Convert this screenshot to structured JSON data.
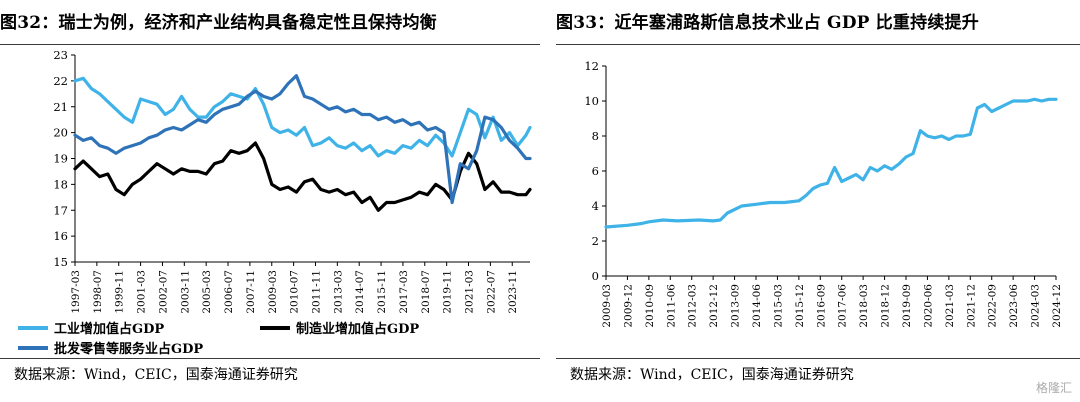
{
  "left": {
    "title": "图32：瑞士为例，经济和产业结构具备稳定性且保持均衡",
    "source": "数据来源：Wind，CEIC，国泰海通证券研究"
  },
  "right": {
    "title": "图33：近年塞浦路斯信息技术业占 GDP 比重持续提升",
    "source": "数据来源：Wind，CEIC，国泰海通证券研究"
  },
  "watermark": "格隆汇",
  "chart_data": [
    {
      "type": "line",
      "title": "",
      "ylim": [
        15,
        23
      ],
      "yticks": [
        15,
        16,
        17,
        18,
        19,
        20,
        21,
        22,
        23
      ],
      "x_tick_labels": [
        "1997-03",
        "1998-07",
        "1999-11",
        "2001-03",
        "2002-07",
        "2003-11",
        "2005-03",
        "2006-07",
        "2007-11",
        "2009-03",
        "2010-07",
        "2011-11",
        "2013-03",
        "2014-07",
        "2015-11",
        "2017-03",
        "2018-07",
        "2019-11",
        "2021-03",
        "2022-07",
        "2023-11"
      ],
      "x_start": "1997-03",
      "x_end": "2024-12",
      "legend": {
        "placement": "bottom"
      },
      "series": [
        {
          "name": "工业增加值占GDP",
          "color": "#3fb3e8",
          "points": [
            [
              "1997-03",
              22.0
            ],
            [
              "1997-09",
              22.1
            ],
            [
              "1998-03",
              21.7
            ],
            [
              "1998-09",
              21.5
            ],
            [
              "1999-03",
              21.2
            ],
            [
              "1999-09",
              20.9
            ],
            [
              "2000-03",
              20.6
            ],
            [
              "2000-09",
              20.4
            ],
            [
              "2001-03",
              21.3
            ],
            [
              "2001-09",
              21.2
            ],
            [
              "2002-03",
              21.1
            ],
            [
              "2002-09",
              20.7
            ],
            [
              "2003-03",
              20.9
            ],
            [
              "2003-09",
              21.4
            ],
            [
              "2004-03",
              20.9
            ],
            [
              "2004-09",
              20.6
            ],
            [
              "2005-03",
              20.6
            ],
            [
              "2005-09",
              21.0
            ],
            [
              "2006-03",
              21.2
            ],
            [
              "2006-09",
              21.5
            ],
            [
              "2007-03",
              21.4
            ],
            [
              "2007-09",
              21.3
            ],
            [
              "2008-03",
              21.7
            ],
            [
              "2008-09",
              21.1
            ],
            [
              "2009-03",
              20.2
            ],
            [
              "2009-09",
              20.0
            ],
            [
              "2010-03",
              20.1
            ],
            [
              "2010-09",
              19.9
            ],
            [
              "2011-03",
              20.2
            ],
            [
              "2011-09",
              19.5
            ],
            [
              "2012-03",
              19.6
            ],
            [
              "2012-09",
              19.8
            ],
            [
              "2013-03",
              19.5
            ],
            [
              "2013-09",
              19.4
            ],
            [
              "2014-03",
              19.6
            ],
            [
              "2014-09",
              19.3
            ],
            [
              "2015-03",
              19.5
            ],
            [
              "2015-09",
              19.1
            ],
            [
              "2016-03",
              19.3
            ],
            [
              "2016-09",
              19.2
            ],
            [
              "2017-03",
              19.5
            ],
            [
              "2017-09",
              19.4
            ],
            [
              "2018-03",
              19.7
            ],
            [
              "2018-09",
              19.5
            ],
            [
              "2019-03",
              19.9
            ],
            [
              "2019-09",
              19.6
            ],
            [
              "2020-03",
              19.1
            ],
            [
              "2020-09",
              20.0
            ],
            [
              "2021-03",
              20.9
            ],
            [
              "2021-09",
              20.7
            ],
            [
              "2022-03",
              19.8
            ],
            [
              "2022-09",
              20.6
            ],
            [
              "2023-03",
              19.7
            ],
            [
              "2023-09",
              20.0
            ],
            [
              "2024-03",
              19.5
            ],
            [
              "2024-09",
              19.9
            ],
            [
              "2024-12",
              20.2
            ]
          ]
        },
        {
          "name": "制造业增加值占GDP",
          "color": "#000000",
          "points": [
            [
              "1997-03",
              18.6
            ],
            [
              "1997-09",
              18.9
            ],
            [
              "1998-03",
              18.6
            ],
            [
              "1998-09",
              18.3
            ],
            [
              "1999-03",
              18.4
            ],
            [
              "1999-09",
              17.8
            ],
            [
              "2000-03",
              17.6
            ],
            [
              "2000-09",
              18.0
            ],
            [
              "2001-03",
              18.2
            ],
            [
              "2001-09",
              18.5
            ],
            [
              "2002-03",
              18.8
            ],
            [
              "2002-09",
              18.6
            ],
            [
              "2003-03",
              18.4
            ],
            [
              "2003-09",
              18.6
            ],
            [
              "2004-03",
              18.5
            ],
            [
              "2004-09",
              18.5
            ],
            [
              "2005-03",
              18.4
            ],
            [
              "2005-09",
              18.8
            ],
            [
              "2006-03",
              18.9
            ],
            [
              "2006-09",
              19.3
            ],
            [
              "2007-03",
              19.2
            ],
            [
              "2007-09",
              19.3
            ],
            [
              "2008-03",
              19.6
            ],
            [
              "2008-09",
              19.0
            ],
            [
              "2009-03",
              18.0
            ],
            [
              "2009-09",
              17.8
            ],
            [
              "2010-03",
              17.9
            ],
            [
              "2010-09",
              17.7
            ],
            [
              "2011-03",
              18.1
            ],
            [
              "2011-09",
              18.2
            ],
            [
              "2012-03",
              17.8
            ],
            [
              "2012-09",
              17.7
            ],
            [
              "2013-03",
              17.8
            ],
            [
              "2013-09",
              17.6
            ],
            [
              "2014-03",
              17.7
            ],
            [
              "2014-09",
              17.3
            ],
            [
              "2015-03",
              17.5
            ],
            [
              "2015-09",
              17.0
            ],
            [
              "2016-03",
              17.3
            ],
            [
              "2016-09",
              17.3
            ],
            [
              "2017-03",
              17.4
            ],
            [
              "2017-09",
              17.5
            ],
            [
              "2018-03",
              17.7
            ],
            [
              "2018-09",
              17.6
            ],
            [
              "2019-03",
              18.0
            ],
            [
              "2019-09",
              17.8
            ],
            [
              "2020-03",
              17.4
            ],
            [
              "2020-09",
              18.5
            ],
            [
              "2021-03",
              19.2
            ],
            [
              "2021-09",
              18.8
            ],
            [
              "2022-03",
              17.8
            ],
            [
              "2022-09",
              18.1
            ],
            [
              "2023-03",
              17.7
            ],
            [
              "2023-09",
              17.7
            ],
            [
              "2024-03",
              17.6
            ],
            [
              "2024-09",
              17.6
            ],
            [
              "2024-12",
              17.8
            ]
          ]
        },
        {
          "name": "批发零售等服务业占GDP",
          "color": "#2e73b8",
          "points": [
            [
              "1997-03",
              19.9
            ],
            [
              "1997-09",
              19.7
            ],
            [
              "1998-03",
              19.8
            ],
            [
              "1998-09",
              19.5
            ],
            [
              "1999-03",
              19.4
            ],
            [
              "1999-09",
              19.2
            ],
            [
              "2000-03",
              19.4
            ],
            [
              "2000-09",
              19.5
            ],
            [
              "2001-03",
              19.6
            ],
            [
              "2001-09",
              19.8
            ],
            [
              "2002-03",
              19.9
            ],
            [
              "2002-09",
              20.1
            ],
            [
              "2003-03",
              20.2
            ],
            [
              "2003-09",
              20.1
            ],
            [
              "2004-03",
              20.3
            ],
            [
              "2004-09",
              20.5
            ],
            [
              "2005-03",
              20.4
            ],
            [
              "2005-09",
              20.7
            ],
            [
              "2006-03",
              20.9
            ],
            [
              "2006-09",
              21.0
            ],
            [
              "2007-03",
              21.1
            ],
            [
              "2007-09",
              21.4
            ],
            [
              "2008-03",
              21.6
            ],
            [
              "2008-09",
              21.4
            ],
            [
              "2009-03",
              21.3
            ],
            [
              "2009-09",
              21.5
            ],
            [
              "2010-03",
              21.9
            ],
            [
              "2010-09",
              22.2
            ],
            [
              "2011-03",
              21.4
            ],
            [
              "2011-09",
              21.3
            ],
            [
              "2012-03",
              21.1
            ],
            [
              "2012-09",
              20.9
            ],
            [
              "2013-03",
              21.0
            ],
            [
              "2013-09",
              20.8
            ],
            [
              "2014-03",
              20.9
            ],
            [
              "2014-09",
              20.7
            ],
            [
              "2015-03",
              20.7
            ],
            [
              "2015-09",
              20.5
            ],
            [
              "2016-03",
              20.6
            ],
            [
              "2016-09",
              20.4
            ],
            [
              "2017-03",
              20.5
            ],
            [
              "2017-09",
              20.3
            ],
            [
              "2018-03",
              20.4
            ],
            [
              "2018-09",
              20.1
            ],
            [
              "2019-03",
              20.2
            ],
            [
              "2019-09",
              20.0
            ],
            [
              "2020-03",
              17.3
            ],
            [
              "2020-09",
              18.8
            ],
            [
              "2021-03",
              18.6
            ],
            [
              "2021-09",
              19.3
            ],
            [
              "2022-03",
              20.6
            ],
            [
              "2022-09",
              20.5
            ],
            [
              "2023-03",
              20.2
            ],
            [
              "2023-09",
              19.7
            ],
            [
              "2024-03",
              19.4
            ],
            [
              "2024-09",
              19.0
            ],
            [
              "2024-12",
              19.0
            ]
          ]
        }
      ]
    },
    {
      "type": "line",
      "title": "",
      "ylim": [
        0,
        12
      ],
      "yticks": [
        0,
        2,
        4,
        6,
        8,
        10,
        12
      ],
      "x_tick_labels": [
        "2009-03",
        "2009-12",
        "2010-09",
        "2011-06",
        "2012-03",
        "2012-12",
        "2013-09",
        "2014-06",
        "2015-03",
        "2015-12",
        "2016-09",
        "2017-06",
        "2018-03",
        "2018-12",
        "2019-09",
        "2020-06",
        "2021-03",
        "2021-12",
        "2022-09",
        "2023-06",
        "2024-03",
        "2024-12"
      ],
      "x_start": "2009-03",
      "x_end": "2024-12",
      "series": [
        {
          "name": "",
          "color": "#3fb3e8",
          "points": [
            [
              "2009-03",
              2.8
            ],
            [
              "2009-12",
              2.9
            ],
            [
              "2010-06",
              3.0
            ],
            [
              "2010-09",
              3.1
            ],
            [
              "2011-03",
              3.2
            ],
            [
              "2011-09",
              3.15
            ],
            [
              "2012-06",
              3.2
            ],
            [
              "2012-12",
              3.15
            ],
            [
              "2013-03",
              3.2
            ],
            [
              "2013-06",
              3.6
            ],
            [
              "2013-09",
              3.8
            ],
            [
              "2013-12",
              4.0
            ],
            [
              "2014-06",
              4.1
            ],
            [
              "2014-12",
              4.2
            ],
            [
              "2015-06",
              4.2
            ],
            [
              "2015-12",
              4.3
            ],
            [
              "2016-03",
              4.6
            ],
            [
              "2016-06",
              5.0
            ],
            [
              "2016-09",
              5.2
            ],
            [
              "2016-12",
              5.3
            ],
            [
              "2017-03",
              6.2
            ],
            [
              "2017-06",
              5.4
            ],
            [
              "2017-09",
              5.6
            ],
            [
              "2017-12",
              5.8
            ],
            [
              "2018-03",
              5.5
            ],
            [
              "2018-06",
              6.2
            ],
            [
              "2018-09",
              6.0
            ],
            [
              "2018-12",
              6.3
            ],
            [
              "2019-03",
              6.1
            ],
            [
              "2019-06",
              6.4
            ],
            [
              "2019-09",
              6.8
            ],
            [
              "2019-12",
              7.0
            ],
            [
              "2020-03",
              8.3
            ],
            [
              "2020-06",
              8.0
            ],
            [
              "2020-09",
              7.9
            ],
            [
              "2020-12",
              8.0
            ],
            [
              "2021-03",
              7.8
            ],
            [
              "2021-06",
              8.0
            ],
            [
              "2021-09",
              8.0
            ],
            [
              "2021-12",
              8.1
            ],
            [
              "2022-03",
              9.6
            ],
            [
              "2022-06",
              9.8
            ],
            [
              "2022-09",
              9.4
            ],
            [
              "2022-12",
              9.6
            ],
            [
              "2023-03",
              9.8
            ],
            [
              "2023-06",
              10.0
            ],
            [
              "2023-09",
              10.0
            ],
            [
              "2023-12",
              10.0
            ],
            [
              "2024-03",
              10.1
            ],
            [
              "2024-06",
              10.0
            ],
            [
              "2024-09",
              10.1
            ],
            [
              "2024-12",
              10.1
            ]
          ]
        }
      ]
    }
  ]
}
